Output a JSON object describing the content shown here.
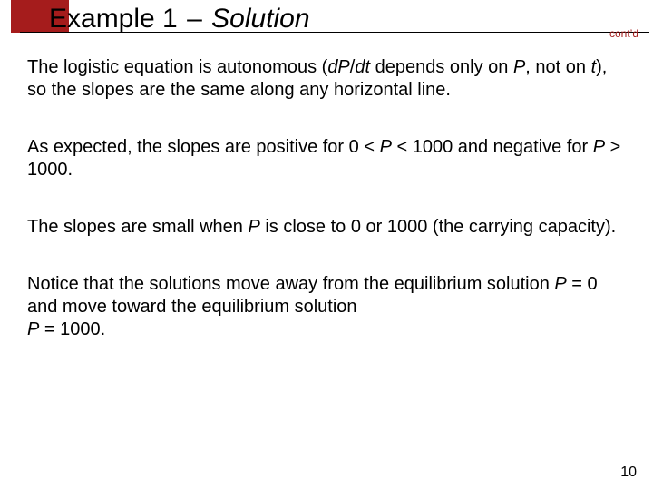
{
  "colors": {
    "accent": "#a51c1c",
    "text": "#000000",
    "background": "#ffffff",
    "rule": "#000000"
  },
  "typography": {
    "title_fontsize": 30,
    "body_fontsize": 20,
    "contd_fontsize": 12,
    "pagenum_fontsize": 16,
    "font_family": "Arial"
  },
  "title": {
    "example_label": "Example 1",
    "separator": "–",
    "solution_label": "Solution"
  },
  "contd_label": "cont’d",
  "paragraphs": {
    "p1_a": "The logistic equation is autonomous (",
    "p1_b": "dP",
    "p1_c": "/",
    "p1_d": "dt",
    "p1_e": " depends only on ",
    "p1_f": "P",
    "p1_g": ", not on ",
    "p1_h": "t",
    "p1_i": "), so the slopes are the same along any horizontal line.",
    "p2_a": "As expected, the slopes are positive for 0 < ",
    "p2_b": "P",
    "p2_c": " < 1000 and negative for ",
    "p2_d": "P",
    "p2_e": " > 1000.",
    "p3_a": "The slopes are small when ",
    "p3_b": "P",
    "p3_c": " is close to 0 or 1000 (the carrying capacity).",
    "p4_a": "Notice that the solutions move away from the equilibrium solution ",
    "p4_b": "P",
    "p4_c": " = 0 and move toward the equilibrium solution ",
    "p4_d": "P",
    "p4_e": " = 1000."
  },
  "page_number": "10"
}
